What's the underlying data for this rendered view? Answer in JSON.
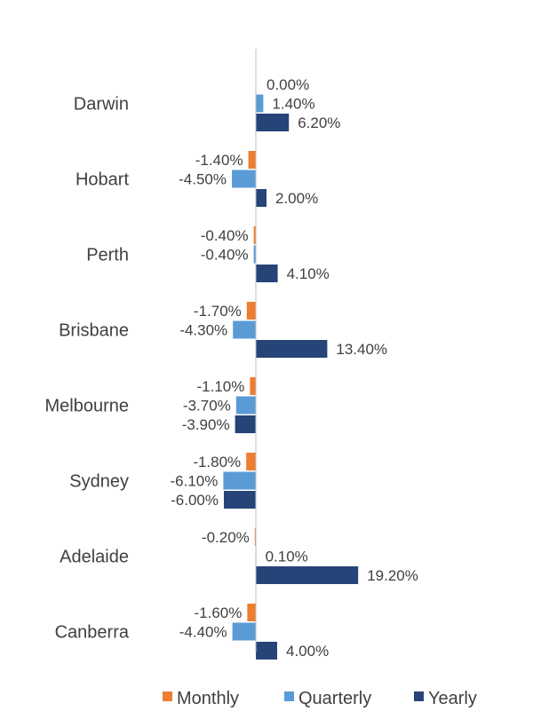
{
  "chart_data": {
    "type": "bar",
    "orientation": "horizontal",
    "categories": [
      "Darwin",
      "Hobart",
      "Perth",
      "Brisbane",
      "Melbourne",
      "Sydney",
      "Adelaide",
      "Canberra"
    ],
    "series": [
      {
        "name": "Monthly",
        "color": "#ED7D31",
        "values": [
          0.0,
          -1.4,
          -0.4,
          -1.7,
          -1.1,
          -1.8,
          -0.2,
          -1.6
        ],
        "labels": [
          "0.00%",
          "-1.40%",
          "-0.40%",
          "-1.70%",
          "-1.10%",
          "-1.80%",
          "-0.20%",
          "-1.60%"
        ]
      },
      {
        "name": "Quarterly",
        "color": "#5B9BD5",
        "values": [
          1.4,
          -4.5,
          -0.4,
          -4.3,
          -3.7,
          -6.1,
          0.1,
          -4.4
        ],
        "labels": [
          "1.40%",
          "-4.50%",
          "-0.40%",
          "-4.30%",
          "-3.70%",
          "-6.10%",
          "0.10%",
          "-4.40%"
        ]
      },
      {
        "name": "Yearly",
        "color": "#264478",
        "values": [
          6.2,
          2.0,
          4.1,
          13.4,
          -3.9,
          -6.0,
          19.2,
          4.0
        ],
        "labels": [
          "6.20%",
          "2.00%",
          "4.10%",
          "13.40%",
          "-3.90%",
          "-6.00%",
          "19.20%",
          "4.00%"
        ]
      }
    ],
    "unit": "%",
    "legend_position": "bottom",
    "grid": false
  }
}
